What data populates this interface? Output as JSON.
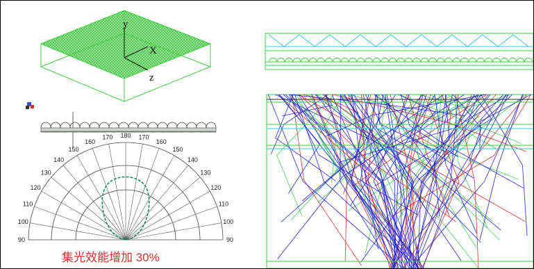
{
  "axes3d": {
    "y": "y",
    "x": "X",
    "z": "z"
  },
  "polar": {
    "left_ticks": [
      "90",
      "100",
      "110",
      "120",
      "130",
      "140",
      "150",
      "160",
      "170"
    ],
    "top_tick": "180",
    "right_ticks": [
      "170",
      "160",
      "150",
      "140",
      "130",
      "120",
      "110",
      "100",
      "90"
    ]
  },
  "caption": "集光效能增加 30%",
  "colors": {
    "panel_green": "#3ecf3e",
    "mesh_fill": "#8de28d",
    "ray_blue": "#1a1ad6",
    "ray_red": "#e02020",
    "ray_green": "#33cc55",
    "cyan": "#33c7e6",
    "caption_red": "#d0312d"
  }
}
